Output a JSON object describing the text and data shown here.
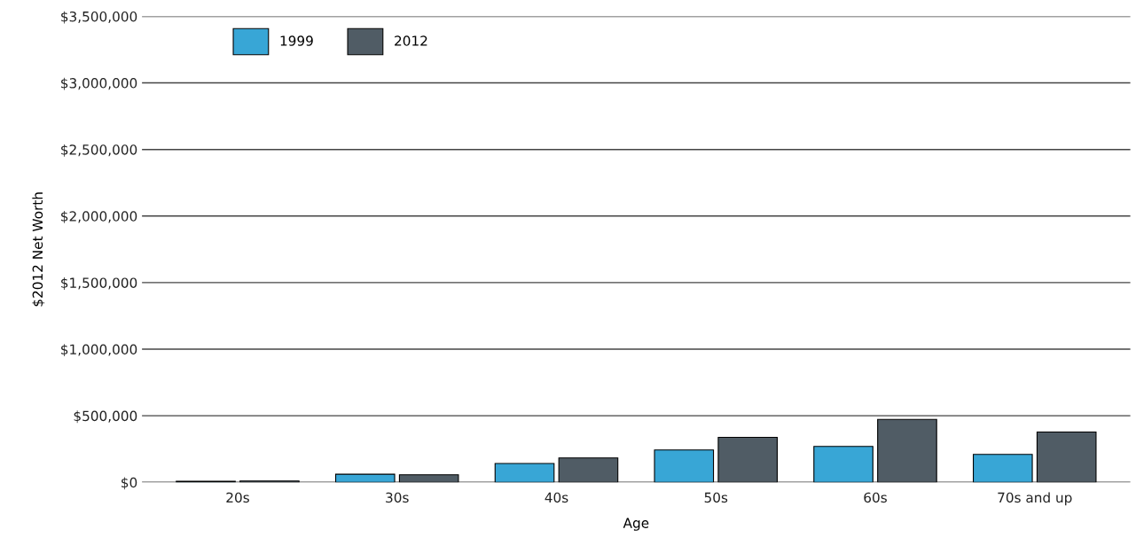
{
  "chart_data": {
    "type": "bar",
    "xlabel": "Age",
    "ylabel": "$2012 Net Worth",
    "categories": [
      "20s",
      "30s",
      "40s",
      "50s",
      "60s",
      "70s and up"
    ],
    "series": [
      {
        "name": "1999",
        "color": "#38a6d6",
        "values": [
          8000,
          61000,
          142000,
          243000,
          270000,
          210000
        ]
      },
      {
        "name": "2012",
        "color": "#505c65",
        "values": [
          10000,
          57000,
          183000,
          338000,
          473000,
          378000
        ]
      }
    ],
    "ylim": [
      0,
      3500000
    ],
    "yticks": [
      {
        "value": 0,
        "label": "$0"
      },
      {
        "value": 500000,
        "label": "$500,000"
      },
      {
        "value": 1000000,
        "label": "$1,000,000"
      },
      {
        "value": 1500000,
        "label": "$1,500,000"
      },
      {
        "value": 2000000,
        "label": "$2,000,000"
      },
      {
        "value": 2500000,
        "label": "$2,500,000"
      },
      {
        "value": 3000000,
        "label": "$3,000,000"
      },
      {
        "value": 3500000,
        "label": "$3,500,000"
      }
    ],
    "grid": "y",
    "legend": "top left"
  }
}
